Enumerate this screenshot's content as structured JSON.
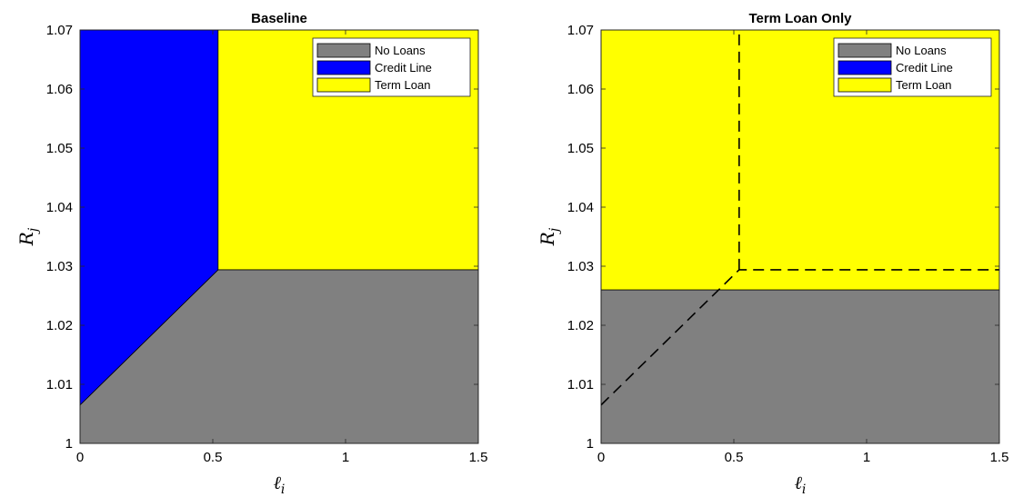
{
  "colors": {
    "no_loans": "#808080",
    "credit_line": "#0000ff",
    "term_loan": "#ffff00",
    "boundary": "#000000"
  },
  "chart_data": [
    {
      "type": "area",
      "title": "Baseline",
      "xlabel": "ℓ",
      "xlabel_sub": "i",
      "ylabel": "R",
      "ylabel_sub": "j",
      "xlim": [
        0,
        1.5
      ],
      "ylim": [
        1,
        1.07
      ],
      "xticks": [
        0,
        0.5,
        1,
        1.5
      ],
      "xtick_labels": [
        "0",
        "0.5",
        "1",
        "1.5"
      ],
      "yticks": [
        1,
        1.01,
        1.02,
        1.03,
        1.04,
        1.05,
        1.06,
        1.07
      ],
      "ytick_labels": [
        "1",
        "1.01",
        "1.02",
        "1.03",
        "1.04",
        "1.05",
        "1.06",
        "1.07"
      ],
      "legend": [
        "No Loans",
        "Credit Line",
        "Term Loan"
      ],
      "legend_position": "top-right",
      "regions": [
        {
          "name": "No Loans",
          "color_key": "no_loans",
          "polygon": [
            [
              0,
              1
            ],
            [
              1.5,
              1
            ],
            [
              1.5,
              1.0294
            ],
            [
              0.52,
              1.0294
            ],
            [
              0,
              1.0065
            ]
          ]
        },
        {
          "name": "Credit Line",
          "color_key": "credit_line",
          "polygon": [
            [
              0,
              1.0065
            ],
            [
              0.52,
              1.0294
            ],
            [
              0.52,
              1.07
            ],
            [
              0,
              1.07
            ]
          ]
        },
        {
          "name": "Term Loan",
          "color_key": "term_loan",
          "polygon": [
            [
              0.52,
              1.0294
            ],
            [
              1.5,
              1.0294
            ],
            [
              1.5,
              1.07
            ],
            [
              0.52,
              1.07
            ]
          ]
        }
      ],
      "dashed_boundary": []
    },
    {
      "type": "area",
      "title": "Term Loan Only",
      "xlabel": "ℓ",
      "xlabel_sub": "i",
      "ylabel": "R",
      "ylabel_sub": "j",
      "xlim": [
        0,
        1.5
      ],
      "ylim": [
        1,
        1.07
      ],
      "xticks": [
        0,
        0.5,
        1,
        1.5
      ],
      "xtick_labels": [
        "0",
        "0.5",
        "1",
        "1.5"
      ],
      "yticks": [
        1,
        1.01,
        1.02,
        1.03,
        1.04,
        1.05,
        1.06,
        1.07
      ],
      "ytick_labels": [
        "1",
        "1.01",
        "1.02",
        "1.03",
        "1.04",
        "1.05",
        "1.06",
        "1.07"
      ],
      "legend": [
        "No Loans",
        "Credit Line",
        "Term Loan"
      ],
      "legend_position": "top-right",
      "regions": [
        {
          "name": "No Loans",
          "color_key": "no_loans",
          "polygon": [
            [
              0,
              1
            ],
            [
              1.5,
              1
            ],
            [
              1.5,
              1.026
            ],
            [
              0,
              1.026
            ]
          ]
        },
        {
          "name": "Term Loan",
          "color_key": "term_loan",
          "polygon": [
            [
              0,
              1.026
            ],
            [
              1.5,
              1.026
            ],
            [
              1.5,
              1.07
            ],
            [
              0,
              1.07
            ]
          ]
        }
      ],
      "dashed_boundary": [
        [
          [
            0,
            1.0065
          ],
          [
            0.52,
            1.0294
          ],
          [
            1.5,
            1.0294
          ]
        ],
        [
          [
            0.52,
            1.0294
          ],
          [
            0.52,
            1.07
          ]
        ]
      ]
    }
  ]
}
